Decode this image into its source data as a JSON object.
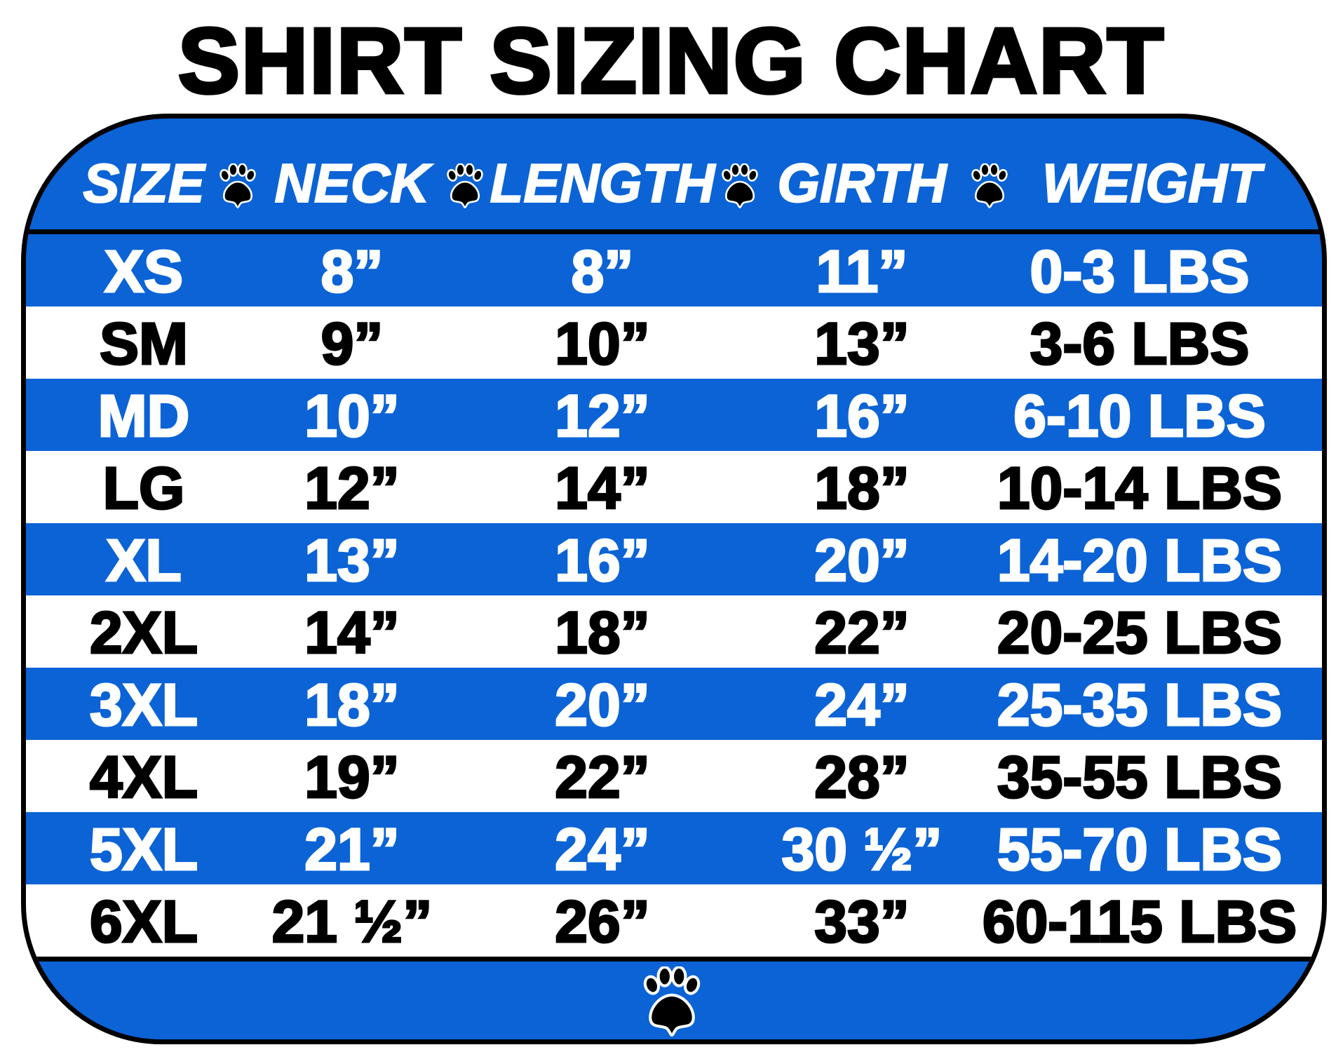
{
  "title": "SHIRT SIZING CHART",
  "colors": {
    "band": "#0b63d6",
    "text_on_blue": "#ffffff",
    "text_on_white": "#000000",
    "border": "#000000"
  },
  "header": {
    "size": "SIZE",
    "neck": "NECK",
    "length": "LENGTH",
    "girth": "GIRTH",
    "weight": "WEIGHT",
    "separator_icon": "paw-print-icon"
  },
  "rows": [
    {
      "size": "XS",
      "neck": "8”",
      "length": "8”",
      "girth": "11”",
      "weight": "0-3 LBS"
    },
    {
      "size": "SM",
      "neck": "9”",
      "length": "10”",
      "girth": "13”",
      "weight": "3-6 LBS"
    },
    {
      "size": "MD",
      "neck": "10”",
      "length": "12”",
      "girth": "16”",
      "weight": "6-10 LBS"
    },
    {
      "size": "LG",
      "neck": "12”",
      "length": "14”",
      "girth": "18”",
      "weight": "10-14 LBS"
    },
    {
      "size": "XL",
      "neck": "13”",
      "length": "16”",
      "girth": "20”",
      "weight": "14-20 LBS"
    },
    {
      "size": "2XL",
      "neck": "14”",
      "length": "18”",
      "girth": "22”",
      "weight": "20-25 LBS"
    },
    {
      "size": "3XL",
      "neck": "18”",
      "length": "20”",
      "girth": "24”",
      "weight": "25-35 LBS"
    },
    {
      "size": "4XL",
      "neck": "19”",
      "length": "22”",
      "girth": "28”",
      "weight": "35-55 LBS"
    },
    {
      "size": "5XL",
      "neck": "21”",
      "length": "24”",
      "girth": "30 ½”",
      "weight": "55-70 LBS"
    },
    {
      "size": "6XL",
      "neck": "21 ½”",
      "length": "26”",
      "girth": "33”",
      "weight": "60-115 LBS"
    }
  ],
  "footer": {
    "icon": "paw-print-icon"
  }
}
